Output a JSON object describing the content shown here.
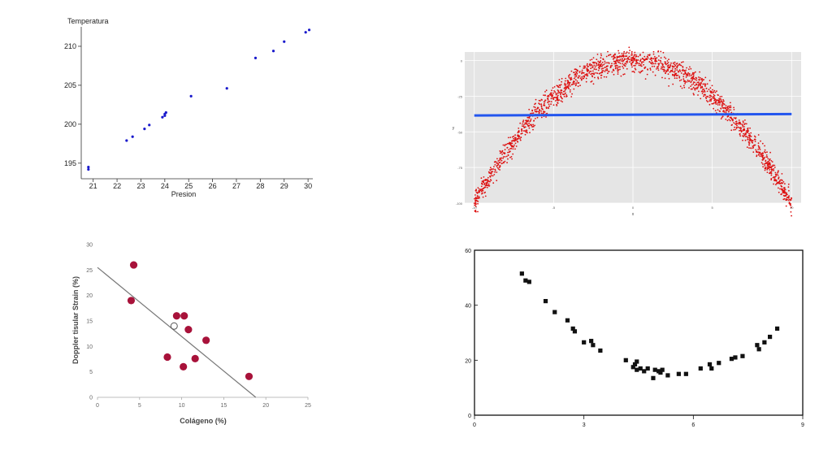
{
  "chart_data": [
    {
      "type": "scatter",
      "title": "",
      "xlabel": "Presion",
      "ylabel": "Temperatura",
      "xlim": [
        20.5,
        30.2
      ],
      "ylim": [
        193,
        212.5
      ],
      "xticks": [
        "21",
        "22",
        "23",
        "24",
        "25",
        "26",
        "27",
        "28",
        "29",
        "30"
      ],
      "yticks": [
        "195",
        "200",
        "205",
        "210"
      ],
      "grid": false,
      "series": [
        {
          "color": "#1a1acc",
          "points": [
            [
              20.8,
              194.5
            ],
            [
              20.8,
              194.2
            ],
            [
              22.4,
              197.9
            ],
            [
              22.65,
              198.4
            ],
            [
              23.15,
              199.4
            ],
            [
              23.35,
              199.9
            ],
            [
              23.9,
              200.9
            ],
            [
              24.0,
              201.1
            ],
            [
              24.0,
              201.3
            ],
            [
              24.05,
              201.5
            ],
            [
              25.1,
              203.6
            ],
            [
              26.6,
              204.6
            ],
            [
              27.8,
              208.5
            ],
            [
              28.55,
              209.4
            ],
            [
              29.0,
              210.6
            ],
            [
              29.9,
              211.8
            ],
            [
              30.05,
              212.1
            ]
          ]
        }
      ]
    },
    {
      "type": "scatter",
      "title": "",
      "xlabel": "x",
      "ylabel": "y",
      "xlim": [
        -10.6,
        10.6
      ],
      "ylim": [
        -100,
        6
      ],
      "xticks": [
        "-10",
        "-5",
        "0",
        "5",
        "10"
      ],
      "yticks": [
        "0",
        "-25",
        "-50",
        "-75",
        "-100"
      ],
      "grid": true,
      "background": "#e5e5e5",
      "point_color": "#dd1111",
      "line_color": "#2255ee",
      "generator": {
        "form": "y = -x^2",
        "x_range": [
          -10,
          10
        ],
        "count": 1800,
        "noise_sd": 4
      },
      "fit_line": {
        "x": [
          -10,
          10
        ],
        "y": [
          -38.5,
          -37.5
        ]
      }
    },
    {
      "type": "scatter",
      "title": "",
      "xlabel": "Colágeno (%)",
      "ylabel": "Doppler tisular Strain (%)",
      "xlim": [
        0,
        25
      ],
      "ylim": [
        0,
        30
      ],
      "xticks": [
        "0",
        "5",
        "10",
        "15",
        "20",
        "25"
      ],
      "yticks": [
        "0",
        "5",
        "10",
        "15",
        "20",
        "25",
        "30"
      ],
      "grid": false,
      "point_color": "#a8123a",
      "series": [
        {
          "points": [
            [
              4.3,
              26
            ],
            [
              4.0,
              19
            ],
            [
              9.4,
              16
            ],
            [
              10.3,
              16
            ],
            [
              10.8,
              13.3
            ],
            [
              12.9,
              11.2
            ],
            [
              8.3,
              7.9
            ],
            [
              10.2,
              6.0
            ],
            [
              11.6,
              7.6
            ],
            [
              18.0,
              4.1
            ]
          ]
        }
      ],
      "open_point": [
        9.1,
        14.0
      ],
      "fit_line": {
        "x": [
          0,
          18.8
        ],
        "y": [
          25.5,
          0
        ]
      }
    },
    {
      "type": "scatter",
      "title": "",
      "xlabel": "",
      "ylabel": "",
      "xlim": [
        0,
        9
      ],
      "ylim": [
        0,
        60
      ],
      "xticks": [
        "0",
        "3",
        "6",
        "9"
      ],
      "yticks": [
        "0",
        "20",
        "40",
        "60"
      ],
      "grid": false,
      "series": [
        {
          "points": [
            [
              1.3,
              51.5
            ],
            [
              1.4,
              49
            ],
            [
              1.5,
              48.5
            ],
            [
              1.95,
              41.5
            ],
            [
              2.2,
              37.5
            ],
            [
              2.55,
              34.5
            ],
            [
              2.7,
              31.5
            ],
            [
              2.75,
              30.5
            ],
            [
              3.0,
              26.5
            ],
            [
              3.2,
              27
            ],
            [
              3.25,
              25.5
            ],
            [
              3.45,
              23.5
            ],
            [
              4.15,
              20
            ],
            [
              4.35,
              17.5
            ],
            [
              4.4,
              18.5
            ],
            [
              4.45,
              19.5
            ],
            [
              4.45,
              16.5
            ],
            [
              4.55,
              17
            ],
            [
              4.65,
              16
            ],
            [
              4.75,
              17
            ],
            [
              4.9,
              13.5
            ],
            [
              4.95,
              16.5
            ],
            [
              5.05,
              16
            ],
            [
              5.1,
              15.5
            ],
            [
              5.15,
              16.5
            ],
            [
              5.3,
              14.5
            ],
            [
              5.6,
              15
            ],
            [
              5.8,
              15
            ],
            [
              6.2,
              17
            ],
            [
              6.45,
              18.5
            ],
            [
              6.5,
              17
            ],
            [
              6.7,
              19
            ],
            [
              7.05,
              20.5
            ],
            [
              7.15,
              21
            ],
            [
              7.35,
              21.5
            ],
            [
              7.75,
              25.5
            ],
            [
              7.8,
              24
            ],
            [
              7.95,
              26.5
            ],
            [
              8.1,
              28.5
            ],
            [
              8.3,
              31.5
            ]
          ]
        }
      ]
    }
  ]
}
